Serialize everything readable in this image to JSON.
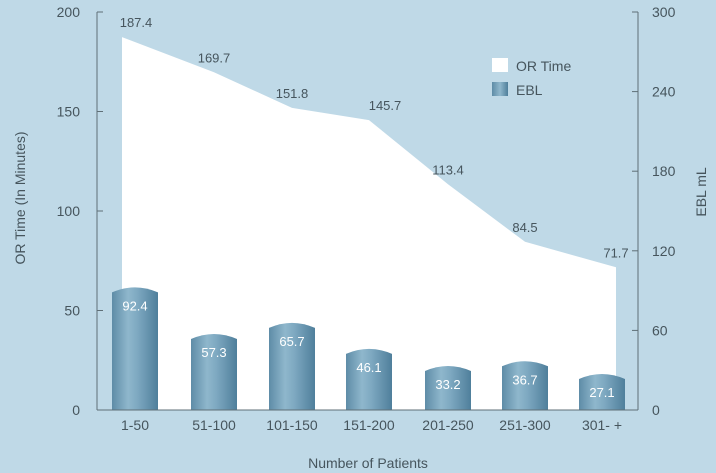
{
  "chart_data": {
    "type": "bar+area",
    "title": "",
    "xlabel": "Number of Patients",
    "ylabel": "OR Time (In Minutes)",
    "y2label": "EBL mL",
    "categories": [
      "1-50",
      "51-100",
      "101-150",
      "151-200",
      "201-250",
      "251-300",
      "301- +"
    ],
    "ylim": [
      0,
      200
    ],
    "y2lim": [
      0,
      300
    ],
    "yticks": [
      "0",
      "50",
      "100",
      "150",
      "200"
    ],
    "y2ticks": [
      "0",
      "60",
      "120",
      "180",
      "240",
      "300"
    ],
    "legend_position": "top-right",
    "series": [
      {
        "name": "OR Time",
        "type": "area",
        "axis": "left",
        "color": "#ffffff",
        "values": [
          187.4,
          169.7,
          151.8,
          145.7,
          113.4,
          84.5,
          71.7
        ],
        "labels": [
          "187.4",
          "169.7",
          "151.8",
          "145.7",
          "113.4",
          "84.5",
          "71.7"
        ]
      },
      {
        "name": "EBL",
        "type": "bar",
        "axis": "right",
        "color": "#6f9bb4",
        "values": [
          92.4,
          57.3,
          65.7,
          46.1,
          33.2,
          36.7,
          27.1
        ],
        "labels": [
          "92.4",
          "57.3",
          "65.7",
          "46.1",
          "33.2",
          "36.7",
          "27.1"
        ]
      }
    ]
  }
}
